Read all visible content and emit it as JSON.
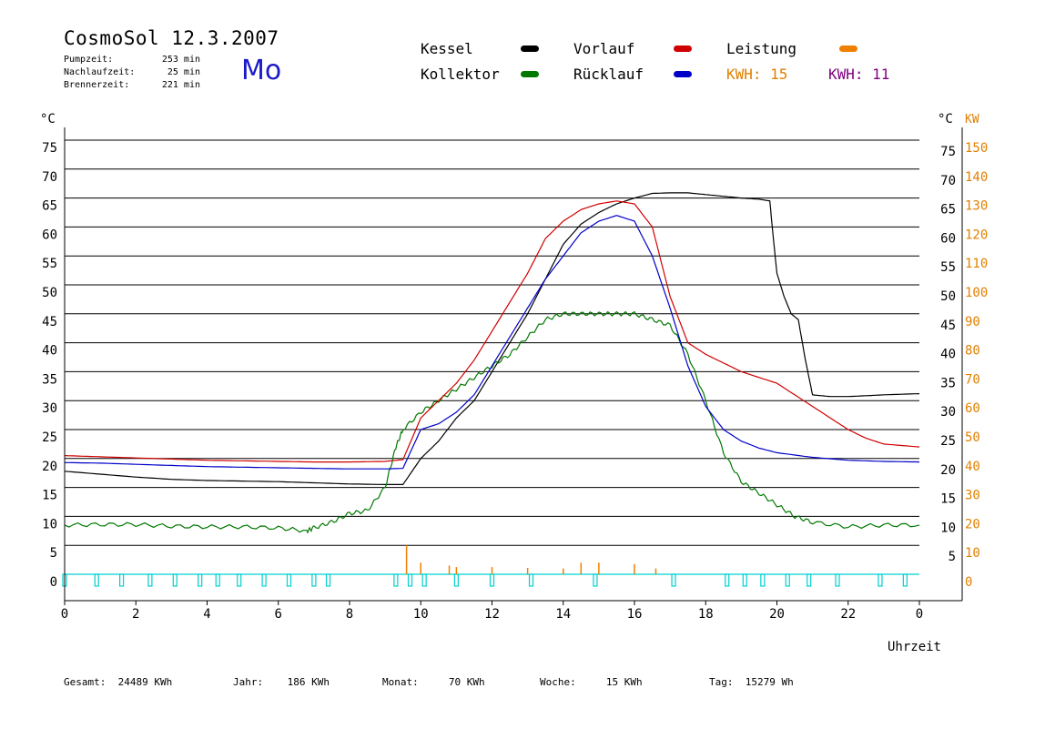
{
  "header": {
    "title": "CosmoSol 12.3.2007",
    "day": "Mo",
    "info": [
      {
        "label": "Pumpzeit:",
        "value": "253 min"
      },
      {
        "label": "Nachlaufzeit:",
        "value": "25 min"
      },
      {
        "label": "Brennerzeit:",
        "value": "221 min"
      }
    ]
  },
  "legend": {
    "kessel": "Kessel",
    "kollektor": "Kollektor",
    "vorlauf": "Vorlauf",
    "ruecklauf": "Rücklauf",
    "leistung": "Leistung",
    "kwh1_label": "KWH:",
    "kwh1_value": "15",
    "kwh2_label": "KWH:",
    "kwh2_value": "11"
  },
  "footer": {
    "gesamt_label": "Gesamt:",
    "gesamt_value": "24489 KWh",
    "jahr_label": "Jahr:",
    "jahr_value": "186 KWh",
    "monat_label": "Monat:",
    "monat_value": "70 KWh",
    "woche_label": "Woche:",
    "woche_value": "15 KWh",
    "tag_label": "Tag:",
    "tag_value": "15279 Wh"
  },
  "colors": {
    "kessel": "#000000",
    "kollektor": "#007800",
    "vorlauf": "#d00000",
    "ruecklauf": "#0000c8",
    "leistung": "#f08000",
    "kwh2": "#800080",
    "pump": "#00d0d0",
    "axis_right": "#e08000"
  },
  "chart_data": {
    "type": "line",
    "xlabel": "Uhrzeit",
    "ylabel_left": "°C",
    "ylabel_right_1": "°C",
    "ylabel_right_2": "KW",
    "xlim": [
      0,
      24
    ],
    "ylim": [
      0,
      75
    ],
    "ylim_right": [
      0,
      150
    ],
    "x_ticks": [
      "0",
      "2",
      "4",
      "6",
      "8",
      "10",
      "12",
      "14",
      "16",
      "18",
      "20",
      "22",
      "0"
    ],
    "y_ticks_left": [
      "0",
      "5",
      "10",
      "15",
      "20",
      "25",
      "30",
      "35",
      "40",
      "45",
      "50",
      "55",
      "60",
      "65",
      "70",
      "75"
    ],
    "y_ticks_right": [
      "5",
      "10",
      "15",
      "20",
      "25",
      "30",
      "35",
      "40",
      "45",
      "50",
      "55",
      "60",
      "65",
      "70",
      "75"
    ],
    "y_ticks_kw": [
      "0",
      "10",
      "20",
      "30",
      "40",
      "50",
      "60",
      "70",
      "80",
      "90",
      "100",
      "110",
      "120",
      "130",
      "140",
      "150"
    ],
    "grid": "horizontal",
    "series": [
      {
        "name": "Kessel",
        "color_key": "kessel",
        "points": [
          [
            0,
            17.8
          ],
          [
            1,
            17.3
          ],
          [
            2,
            16.8
          ],
          [
            3,
            16.4
          ],
          [
            4,
            16.2
          ],
          [
            5,
            16.1
          ],
          [
            6,
            16.0
          ],
          [
            7,
            15.8
          ],
          [
            8,
            15.6
          ],
          [
            9,
            15.5
          ],
          [
            9.5,
            15.5
          ],
          [
            10,
            20
          ],
          [
            10.5,
            23
          ],
          [
            11,
            27
          ],
          [
            11.5,
            30
          ],
          [
            12,
            35
          ],
          [
            12.5,
            40
          ],
          [
            13,
            45
          ],
          [
            13.5,
            51
          ],
          [
            14,
            57
          ],
          [
            14.5,
            60.5
          ],
          [
            15,
            62.5
          ],
          [
            15.5,
            64
          ],
          [
            16,
            65
          ],
          [
            16.5,
            65.8
          ],
          [
            17,
            65.9
          ],
          [
            17.5,
            65.9
          ],
          [
            18,
            65.6
          ],
          [
            18.5,
            65.3
          ],
          [
            19,
            65
          ],
          [
            19.5,
            64.8
          ],
          [
            19.8,
            64.5
          ],
          [
            19.9,
            58
          ],
          [
            20,
            52
          ],
          [
            20.2,
            48
          ],
          [
            20.4,
            45
          ],
          [
            20.6,
            44
          ],
          [
            20.8,
            37
          ],
          [
            21,
            31
          ],
          [
            21.5,
            30.7
          ],
          [
            22,
            30.7
          ],
          [
            23,
            31
          ],
          [
            24,
            31.2
          ]
        ]
      },
      {
        "name": "Kollektor",
        "color_key": "kollektor",
        "points": [
          [
            0,
            8.5
          ],
          [
            1,
            8.6
          ],
          [
            2,
            8.6
          ],
          [
            3,
            8.3
          ],
          [
            4,
            8.2
          ],
          [
            5,
            8.2
          ],
          [
            6,
            8.0
          ],
          [
            6.8,
            7.5
          ],
          [
            7,
            8
          ],
          [
            7.5,
            9
          ],
          [
            8,
            10.5
          ],
          [
            8.5,
            11
          ],
          [
            9,
            15
          ],
          [
            9.3,
            22
          ],
          [
            9.5,
            25
          ],
          [
            10,
            28
          ],
          [
            10.5,
            30
          ],
          [
            11,
            32
          ],
          [
            11.5,
            34
          ],
          [
            12,
            36
          ],
          [
            12.5,
            38
          ],
          [
            13,
            41
          ],
          [
            13.5,
            44
          ],
          [
            14,
            45
          ],
          [
            14.5,
            45
          ],
          [
            15,
            45
          ],
          [
            15.5,
            45
          ],
          [
            16,
            45
          ],
          [
            16.5,
            44
          ],
          [
            17,
            43
          ],
          [
            17.5,
            38
          ],
          [
            18,
            30
          ],
          [
            18.5,
            21
          ],
          [
            19,
            16
          ],
          [
            19.5,
            14
          ],
          [
            20,
            12
          ],
          [
            20.5,
            10
          ],
          [
            21,
            9
          ],
          [
            22,
            8.2
          ],
          [
            23,
            8.5
          ],
          [
            24,
            8.5
          ]
        ]
      },
      {
        "name": "Vorlauf",
        "color_key": "vorlauf",
        "points": [
          [
            0,
            20.5
          ],
          [
            1,
            20.3
          ],
          [
            2,
            20.1
          ],
          [
            3,
            19.9
          ],
          [
            4,
            19.7
          ],
          [
            5,
            19.6
          ],
          [
            6,
            19.5
          ],
          [
            7,
            19.4
          ],
          [
            8,
            19.4
          ],
          [
            9,
            19.5
          ],
          [
            9.5,
            19.8
          ],
          [
            10,
            27
          ],
          [
            10.5,
            30
          ],
          [
            11,
            33
          ],
          [
            11.5,
            37
          ],
          [
            12,
            42
          ],
          [
            12.5,
            47
          ],
          [
            13,
            52
          ],
          [
            13.5,
            58
          ],
          [
            14,
            61
          ],
          [
            14.5,
            63
          ],
          [
            15,
            64
          ],
          [
            15.5,
            64.5
          ],
          [
            16,
            64
          ],
          [
            16.5,
            60
          ],
          [
            17,
            48
          ],
          [
            17.5,
            40
          ],
          [
            18,
            38
          ],
          [
            18.5,
            36.5
          ],
          [
            19,
            35
          ],
          [
            19.5,
            34
          ],
          [
            20,
            33
          ],
          [
            20.5,
            31
          ],
          [
            21,
            29
          ],
          [
            21.5,
            27
          ],
          [
            22,
            25
          ],
          [
            22.5,
            23.5
          ],
          [
            23,
            22.5
          ],
          [
            24,
            22
          ]
        ]
      },
      {
        "name": "Rücklauf",
        "color_key": "ruecklauf",
        "points": [
          [
            0,
            19.3
          ],
          [
            1,
            19.2
          ],
          [
            2,
            19.0
          ],
          [
            3,
            18.8
          ],
          [
            4,
            18.6
          ],
          [
            5,
            18.5
          ],
          [
            6,
            18.4
          ],
          [
            7,
            18.3
          ],
          [
            8,
            18.2
          ],
          [
            9,
            18.2
          ],
          [
            9.5,
            18.3
          ],
          [
            10,
            25
          ],
          [
            10.5,
            26
          ],
          [
            11,
            28
          ],
          [
            11.5,
            31
          ],
          [
            12,
            36
          ],
          [
            12.5,
            41
          ],
          [
            13,
            46
          ],
          [
            13.5,
            51
          ],
          [
            14,
            55
          ],
          [
            14.5,
            59
          ],
          [
            15,
            61
          ],
          [
            15.5,
            62
          ],
          [
            16,
            61
          ],
          [
            16.5,
            55
          ],
          [
            17,
            46
          ],
          [
            17.5,
            36
          ],
          [
            18,
            29
          ],
          [
            18.5,
            25
          ],
          [
            19,
            23
          ],
          [
            19.5,
            21.8
          ],
          [
            20,
            21
          ],
          [
            21,
            20.2
          ],
          [
            22,
            19.7
          ],
          [
            23,
            19.5
          ],
          [
            24,
            19.4
          ]
        ]
      }
    ],
    "leistung_kw": [
      [
        9.6,
        10
      ],
      [
        10,
        4
      ],
      [
        10.8,
        3
      ],
      [
        11,
        2.5
      ],
      [
        12,
        2.5
      ],
      [
        13,
        2.2
      ],
      [
        14,
        2
      ],
      [
        14.5,
        4
      ],
      [
        15,
        4
      ],
      [
        16,
        3.5
      ],
      [
        16.6,
        2
      ]
    ],
    "pump_on_hours": [
      0,
      0.9,
      1.6,
      2.4,
      3.1,
      3.8,
      4.3,
      4.9,
      5.6,
      6.3,
      7.0,
      7.4,
      9.3,
      9.7,
      10.1,
      11.0,
      12.0,
      13.1,
      14.9,
      17.1,
      18.6,
      19.1,
      19.6,
      20.3,
      20.9,
      21.7,
      22.9,
      23.6
    ]
  }
}
